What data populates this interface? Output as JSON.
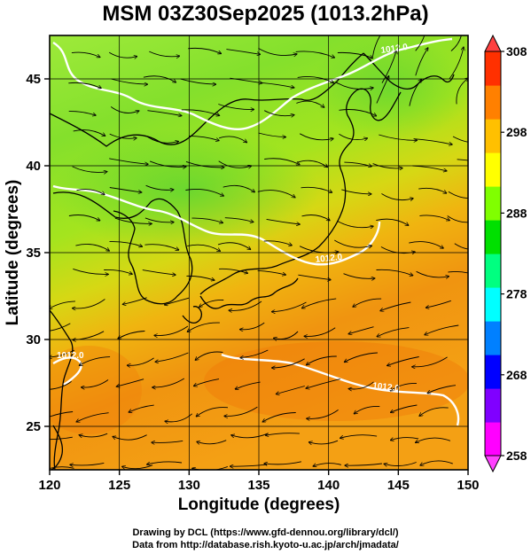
{
  "map": {
    "title": "MSM 03Z30Sep2025 (1013.2hPa)",
    "x_axis": {
      "label": "Longitude (degrees)",
      "range": [
        120,
        150
      ],
      "ticks": [
        "120",
        "125",
        "130",
        "135",
        "140",
        "145",
        "150"
      ]
    },
    "y_axis": {
      "label": "Latitude  (degrees)",
      "range": [
        22.5,
        47.5
      ],
      "ticks": [
        "25",
        "30",
        "35",
        "40",
        "45"
      ]
    },
    "colorbar": {
      "range": [
        258,
        308
      ],
      "labels": [
        "308",
        "298",
        "288",
        "278",
        "268",
        "258"
      ],
      "colors": [
        "#ff00ff",
        "#8000ff",
        "#0000ff",
        "#0080ff",
        "#00ffff",
        "#00ff80",
        "#00e000",
        "#80ff00",
        "#ffff00",
        "#ffc000",
        "#ff8000",
        "#ff3000"
      ],
      "over_color": "#ff4040",
      "under_color": "#ff40ff"
    },
    "contours": [
      {
        "label": "1012.0",
        "level": 1012.0
      },
      {
        "label": "1012.0",
        "level": 1012.0
      },
      {
        "label": "1012.0",
        "level": 1012.0
      },
      {
        "label": "1012.0",
        "level": 1012.0
      }
    ]
  },
  "footer": {
    "line1": "Drawing by DCL (https://www.gfd-dennou.org/library/dcl/)",
    "line2": "Data from http://database.rish.kyoto-u.ac.jp/arch/jmadata/"
  }
}
